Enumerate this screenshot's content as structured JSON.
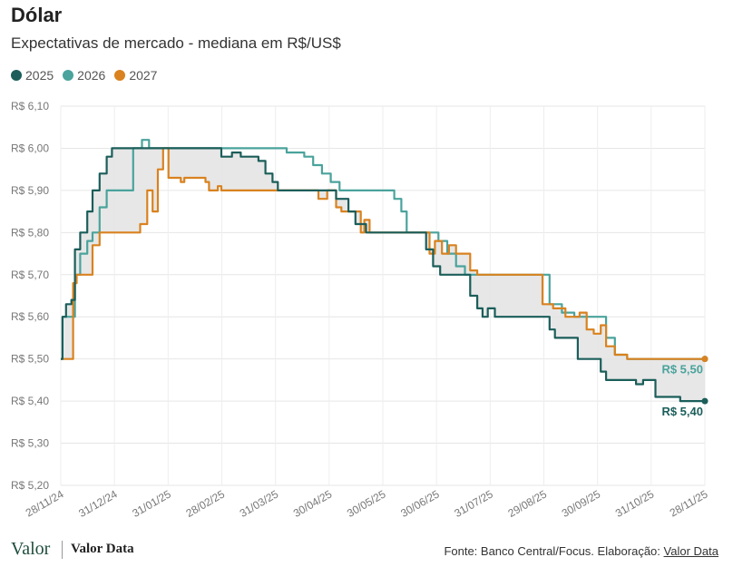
{
  "chart_data": {
    "type": "line",
    "title": "Dólar",
    "subtitle": "Expectativas de mercado - mediana em R$/US$",
    "x_ticks": [
      "28/11/24",
      "31/12/24",
      "31/01/25",
      "28/02/25",
      "31/03/25",
      "30/04/25",
      "30/05/25",
      "30/06/25",
      "31/07/25",
      "29/08/25",
      "30/09/25",
      "31/10/25",
      "28/11/25"
    ],
    "y_ticks": [
      "R$ 6,10",
      "R$ 6,00",
      "R$ 5,90",
      "R$ 5,80",
      "R$ 5,70",
      "R$ 5,60",
      "R$ 5,50",
      "R$ 5,40",
      "R$ 5,30",
      "R$ 5,20"
    ],
    "ylim": [
      5.2,
      6.1
    ],
    "xlim": [
      "2024-11-28",
      "2025-11-28"
    ],
    "legend_position": "top-left",
    "grid": true,
    "shaded_band_between": [
      "2025",
      "2027"
    ],
    "series": [
      {
        "name": "2025",
        "color": "#1b5e5a",
        "end_label": "R$ 5,40",
        "points": [
          [
            "2024-11-28",
            5.5
          ],
          [
            "2024-11-29",
            5.6
          ],
          [
            "2024-12-01",
            5.63
          ],
          [
            "2024-12-04",
            5.64
          ],
          [
            "2024-12-06",
            5.76
          ],
          [
            "2024-12-09",
            5.8
          ],
          [
            "2024-12-13",
            5.85
          ],
          [
            "2024-12-16",
            5.9
          ],
          [
            "2024-12-20",
            5.94
          ],
          [
            "2024-12-24",
            5.98
          ],
          [
            "2024-12-27",
            6.0
          ],
          [
            "2025-01-10",
            6.0
          ],
          [
            "2025-02-25",
            6.0
          ],
          [
            "2025-02-27",
            5.98
          ],
          [
            "2025-03-05",
            5.99
          ],
          [
            "2025-03-10",
            5.98
          ],
          [
            "2025-03-20",
            5.97
          ],
          [
            "2025-03-24",
            5.94
          ],
          [
            "2025-03-28",
            5.92
          ],
          [
            "2025-03-31",
            5.9
          ],
          [
            "2025-04-30",
            5.9
          ],
          [
            "2025-05-03",
            5.88
          ],
          [
            "2025-05-10",
            5.85
          ],
          [
            "2025-05-14",
            5.82
          ],
          [
            "2025-05-20",
            5.8
          ],
          [
            "2025-06-20",
            5.8
          ],
          [
            "2025-06-23",
            5.76
          ],
          [
            "2025-06-27",
            5.72
          ],
          [
            "2025-07-01",
            5.7
          ],
          [
            "2025-07-14",
            5.7
          ],
          [
            "2025-07-18",
            5.65
          ],
          [
            "2025-07-22",
            5.62
          ],
          [
            "2025-07-25",
            5.6
          ],
          [
            "2025-07-28",
            5.62
          ],
          [
            "2025-08-01",
            5.6
          ],
          [
            "2025-08-29",
            5.6
          ],
          [
            "2025-09-01",
            5.57
          ],
          [
            "2025-09-04",
            5.55
          ],
          [
            "2025-09-15",
            5.55
          ],
          [
            "2025-09-17",
            5.5
          ],
          [
            "2025-09-26",
            5.5
          ],
          [
            "2025-09-30",
            5.47
          ],
          [
            "2025-10-03",
            5.45
          ],
          [
            "2025-10-14",
            5.45
          ],
          [
            "2025-10-20",
            5.44
          ],
          [
            "2025-10-24",
            5.45
          ],
          [
            "2025-10-31",
            5.41
          ],
          [
            "2025-11-10",
            5.41
          ],
          [
            "2025-11-14",
            5.4
          ],
          [
            "2025-11-28",
            5.4
          ]
        ]
      },
      {
        "name": "2026",
        "color": "#4aa39c",
        "end_label": "R$ 5,50",
        "points": [
          [
            "2024-11-28",
            5.5
          ],
          [
            "2024-11-29",
            5.6
          ],
          [
            "2024-12-06",
            5.7
          ],
          [
            "2024-12-09",
            5.75
          ],
          [
            "2024-12-13",
            5.78
          ],
          [
            "2024-12-16",
            5.8
          ],
          [
            "2024-12-20",
            5.86
          ],
          [
            "2024-12-24",
            5.9
          ],
          [
            "2025-01-06",
            5.9
          ],
          [
            "2025-01-08",
            6.0
          ],
          [
            "2025-01-13",
            6.02
          ],
          [
            "2025-01-17",
            6.0
          ],
          [
            "2025-03-31",
            6.0
          ],
          [
            "2025-04-05",
            5.99
          ],
          [
            "2025-04-15",
            5.98
          ],
          [
            "2025-04-20",
            5.96
          ],
          [
            "2025-04-25",
            5.94
          ],
          [
            "2025-04-30",
            5.92
          ],
          [
            "2025-05-05",
            5.9
          ],
          [
            "2025-05-30",
            5.9
          ],
          [
            "2025-06-05",
            5.88
          ],
          [
            "2025-06-09",
            5.85
          ],
          [
            "2025-06-12",
            5.8
          ],
          [
            "2025-06-27",
            5.8
          ],
          [
            "2025-06-30",
            5.78
          ],
          [
            "2025-07-05",
            5.75
          ],
          [
            "2025-07-10",
            5.72
          ],
          [
            "2025-07-15",
            5.7
          ],
          [
            "2025-08-29",
            5.7
          ],
          [
            "2025-09-01",
            5.63
          ],
          [
            "2025-09-08",
            5.61
          ],
          [
            "2025-09-15",
            5.6
          ],
          [
            "2025-09-30",
            5.6
          ],
          [
            "2025-10-03",
            5.55
          ],
          [
            "2025-10-08",
            5.51
          ],
          [
            "2025-10-15",
            5.5
          ],
          [
            "2025-11-28",
            5.5
          ]
        ]
      },
      {
        "name": "2027",
        "color": "#d9821f",
        "end_label": "",
        "points": [
          [
            "2024-11-28",
            5.5
          ],
          [
            "2024-12-04",
            5.5
          ],
          [
            "2024-12-05",
            5.68
          ],
          [
            "2024-12-07",
            5.7
          ],
          [
            "2024-12-13",
            5.7
          ],
          [
            "2024-12-16",
            5.77
          ],
          [
            "2024-12-20",
            5.8
          ],
          [
            "2025-01-10",
            5.8
          ],
          [
            "2025-01-12",
            5.82
          ],
          [
            "2025-01-14",
            5.82
          ],
          [
            "2025-01-16",
            5.9
          ],
          [
            "2025-01-19",
            5.85
          ],
          [
            "2025-01-22",
            5.95
          ],
          [
            "2025-01-25",
            6.0
          ],
          [
            "2025-01-28",
            5.93
          ],
          [
            "2025-02-04",
            5.92
          ],
          [
            "2025-02-06",
            5.93
          ],
          [
            "2025-02-18",
            5.92
          ],
          [
            "2025-02-20",
            5.9
          ],
          [
            "2025-02-25",
            5.91
          ],
          [
            "2025-02-27",
            5.9
          ],
          [
            "2025-04-20",
            5.9
          ],
          [
            "2025-04-23",
            5.88
          ],
          [
            "2025-04-28",
            5.9
          ],
          [
            "2025-05-03",
            5.86
          ],
          [
            "2025-05-06",
            5.85
          ],
          [
            "2025-05-15",
            5.85
          ],
          [
            "2025-05-17",
            5.8
          ],
          [
            "2025-05-19",
            5.83
          ],
          [
            "2025-05-22",
            5.8
          ],
          [
            "2025-06-23",
            5.8
          ],
          [
            "2025-06-25",
            5.75
          ],
          [
            "2025-06-28",
            5.78
          ],
          [
            "2025-07-02",
            5.75
          ],
          [
            "2025-07-06",
            5.77
          ],
          [
            "2025-07-10",
            5.75
          ],
          [
            "2025-07-15",
            5.75
          ],
          [
            "2025-07-18",
            5.71
          ],
          [
            "2025-07-22",
            5.7
          ],
          [
            "2025-08-25",
            5.7
          ],
          [
            "2025-08-28",
            5.63
          ],
          [
            "2025-09-03",
            5.62
          ],
          [
            "2025-09-10",
            5.6
          ],
          [
            "2025-09-18",
            5.61
          ],
          [
            "2025-09-22",
            5.57
          ],
          [
            "2025-09-26",
            5.56
          ],
          [
            "2025-09-30",
            5.58
          ],
          [
            "2025-10-03",
            5.53
          ],
          [
            "2025-10-08",
            5.51
          ],
          [
            "2025-10-15",
            5.5
          ],
          [
            "2025-11-28",
            5.5
          ]
        ]
      }
    ]
  },
  "footer": {
    "brand_primary": "Valor",
    "brand_secondary": "Valor Data",
    "source_prefix": "Fonte: Banco Central/Focus. Elaboração:",
    "source_link": "Valor Data"
  }
}
